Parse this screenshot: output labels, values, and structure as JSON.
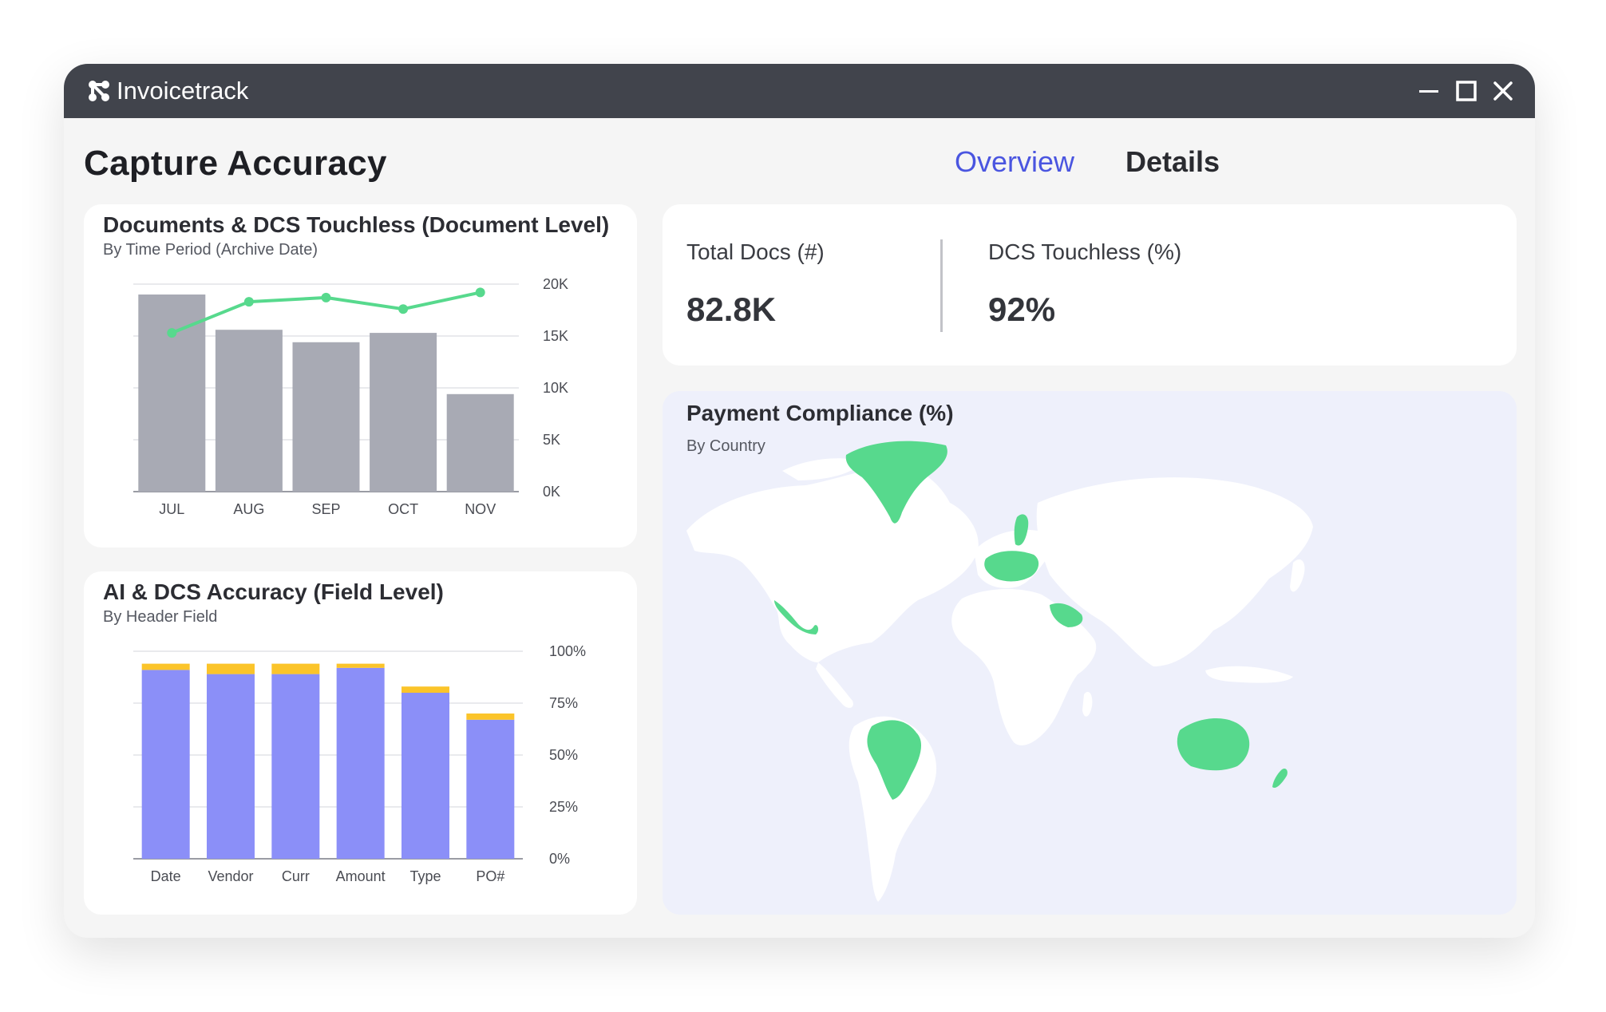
{
  "app": {
    "title": "Invoicetrack"
  },
  "page": {
    "title": "Capture Accuracy"
  },
  "tabs": [
    {
      "label": "Overview",
      "active": true
    },
    {
      "label": "Details",
      "active": false
    }
  ],
  "colors": {
    "titlebar": "#41444c",
    "accent": "#4a55e0",
    "bar_gray": "#a8aab4",
    "line_green": "#57d98d",
    "bar_purple": "#8b8ff8",
    "bar_yellow": "#fbc42a",
    "map_bg": "#eef0fb",
    "map_highlight": "#57d98d"
  },
  "documents_card": {
    "title": "Documents & DCS Touchless (Document Level)",
    "subtitle": "By Time Period (Archive Date)"
  },
  "accuracy_card": {
    "title": "AI & DCS Accuracy (Field Level)",
    "subtitle": "By Header Field"
  },
  "kpis": [
    {
      "label": "Total Docs (#)",
      "value": "82.8K"
    },
    {
      "label": "DCS Touchless (%)",
      "value": "92%"
    }
  ],
  "map_card": {
    "title": "Payment Compliance (%)",
    "subtitle": "By Country",
    "highlighted_regions": [
      "Greenland",
      "Mexico",
      "Brazil",
      "Finland",
      "Europe",
      "Saudi Arabia",
      "Australia",
      "New Zealand"
    ]
  },
  "chart_data": [
    {
      "type": "bar",
      "categories": [
        "JUL",
        "AUG",
        "SEP",
        "OCT",
        "NOV"
      ],
      "series": [
        {
          "kind": "bar",
          "values": [
            19000,
            15600,
            14400,
            15300,
            9400
          ]
        },
        {
          "kind": "line",
          "values": [
            15300,
            18300,
            18700,
            17600,
            19200
          ]
        }
      ],
      "yticks": [
        "0K",
        "5K",
        "10K",
        "15K",
        "20K"
      ],
      "ylim": [
        0,
        20000
      ],
      "grid": true,
      "y_axis_side": "right"
    },
    {
      "type": "bar",
      "stacked": true,
      "categories": [
        "Date",
        "Vendor",
        "Curr",
        "Amount",
        "Type",
        "PO#"
      ],
      "series": [
        {
          "values": [
            91,
            89,
            89,
            92,
            80,
            67
          ]
        },
        {
          "values": [
            3,
            5,
            5,
            2,
            3,
            3
          ]
        }
      ],
      "yticks": [
        "0%",
        "25%",
        "50%",
        "75%",
        "100%"
      ],
      "ylim": [
        0,
        100
      ],
      "grid": true,
      "y_axis_side": "right"
    }
  ]
}
